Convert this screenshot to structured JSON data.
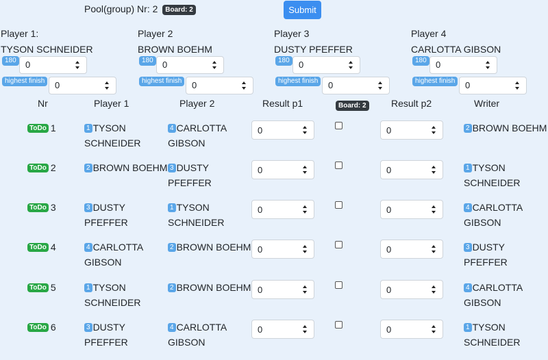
{
  "header": {
    "pool_label": "Pool(group) Nr: 2",
    "board_badge": "Board: 2",
    "submit_label": "Submit"
  },
  "players": [
    {
      "label": "Player 1:",
      "name": "TYSON SCHNEIDER",
      "tag_180": "180",
      "value_180": "0",
      "tag_finish": "highest finish",
      "value_finish": "0"
    },
    {
      "label": "Player 2",
      "name": "BROWN BOEHM",
      "tag_180": "180",
      "value_180": "0",
      "tag_finish": "highest finish",
      "value_finish": "0"
    },
    {
      "label": "Player 3",
      "name": "DUSTY PFEFFER",
      "tag_180": "180",
      "value_180": "0",
      "tag_finish": "highest finish",
      "value_finish": "0"
    },
    {
      "label": "Player 4",
      "name": "CARLOTTA GIBSON",
      "tag_180": "180",
      "value_180": "0",
      "tag_finish": "highest finish",
      "value_finish": "0"
    }
  ],
  "table": {
    "headers": {
      "nr": "Nr",
      "p1": "Player 1",
      "p2": "Player 2",
      "r1": "Result p1",
      "board": "Board: 2",
      "r2": "Result p2",
      "writer": "Writer"
    },
    "rows": [
      {
        "status": "ToDo",
        "nr": "1",
        "p1_num": "1",
        "p1_line1": "TYSON",
        "p1_line2": "SCHNEIDER",
        "p2_num": "4",
        "p2_line1": "CARLOTTA",
        "p2_line2": "GIBSON",
        "r1": "0",
        "r2": "0",
        "w_num": "2",
        "w_line1": "BROWN BOEHM",
        "w_line2": ""
      },
      {
        "status": "ToDo",
        "nr": "2",
        "p1_num": "2",
        "p1_line1": "BROWN BOEHM",
        "p1_line2": "",
        "p2_num": "3",
        "p2_line1": "DUSTY PFEFFER",
        "p2_line2": "",
        "r1": "0",
        "r2": "0",
        "w_num": "1",
        "w_line1": "TYSON",
        "w_line2": "SCHNEIDER"
      },
      {
        "status": "ToDo",
        "nr": "3",
        "p1_num": "3",
        "p1_line1": "DUSTY PFEFFER",
        "p1_line2": "",
        "p2_num": "1",
        "p2_line1": "TYSON",
        "p2_line2": "SCHNEIDER",
        "r1": "0",
        "r2": "0",
        "w_num": "4",
        "w_line1": "CARLOTTA",
        "w_line2": "GIBSON"
      },
      {
        "status": "ToDo",
        "nr": "4",
        "p1_num": "4",
        "p1_line1": "CARLOTTA",
        "p1_line2": "GIBSON",
        "p2_num": "2",
        "p2_line1": "BROWN BOEHM",
        "p2_line2": "",
        "r1": "0",
        "r2": "0",
        "w_num": "3",
        "w_line1": "DUSTY PFEFFER",
        "w_line2": ""
      },
      {
        "status": "ToDo",
        "nr": "5",
        "p1_num": "1",
        "p1_line1": "TYSON",
        "p1_line2": "SCHNEIDER",
        "p2_num": "2",
        "p2_line1": "BROWN BOEHM",
        "p2_line2": "",
        "r1": "0",
        "r2": "0",
        "w_num": "4",
        "w_line1": "CARLOTTA",
        "w_line2": "GIBSON"
      },
      {
        "status": "ToDo",
        "nr": "6",
        "p1_num": "3",
        "p1_line1": "DUSTY PFEFFER",
        "p1_line2": "",
        "p2_num": "4",
        "p2_line1": "CARLOTTA",
        "p2_line2": "GIBSON",
        "r1": "0",
        "r2": "0",
        "w_num": "1",
        "w_line1": "TYSON",
        "w_line2": "SCHNEIDER"
      }
    ]
  }
}
